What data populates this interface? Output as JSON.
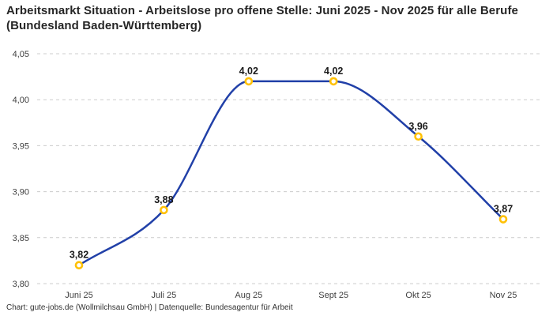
{
  "header": {
    "title": "Arbeitsmarkt Situation - Arbeitslose pro offene Stelle: Juni 2025 - Nov 2025 für alle Berufe (Bundesland Baden-Württemberg)"
  },
  "footer": {
    "text": "Chart: gute-jobs.de (Wollmilchsau GmbH) | Datenquelle: Bundesagentur für Arbeit"
  },
  "colors": {
    "line": "#2140a8",
    "marker_ring": "#ffc107",
    "marker_fill": "#ffffff",
    "grid": "#cccccc",
    "axis_text": "#404040",
    "data_label": "#1a1a1a",
    "title_text": "#262626",
    "background": "#ffffff"
  },
  "chart_data": {
    "type": "line",
    "title": "Arbeitsmarkt Situation - Arbeitslose pro offene Stelle: Juni 2025 - Nov 2025 für alle Berufe (Bundesland Baden-Württemberg)",
    "categories": [
      "Juni 25",
      "Juli 25",
      "Aug 25",
      "Sept 25",
      "Okt 25",
      "Nov 25"
    ],
    "values": [
      3.82,
      3.88,
      4.02,
      4.02,
      3.96,
      3.87
    ],
    "value_labels": [
      "3,82",
      "3,88",
      "4,02",
      "4,02",
      "3,96",
      "3,87"
    ],
    "ylim": [
      3.8,
      4.05
    ],
    "yticks": [
      4.05,
      4.0,
      3.95,
      3.9,
      3.85,
      3.8
    ],
    "ytick_labels": [
      "4,05",
      "4,00",
      "3,95",
      "3,90",
      "3,85",
      "3,80"
    ],
    "xlabel": "",
    "ylabel": "",
    "grid": "horizontal-dashed",
    "legend": "none",
    "curve": "monotone"
  }
}
